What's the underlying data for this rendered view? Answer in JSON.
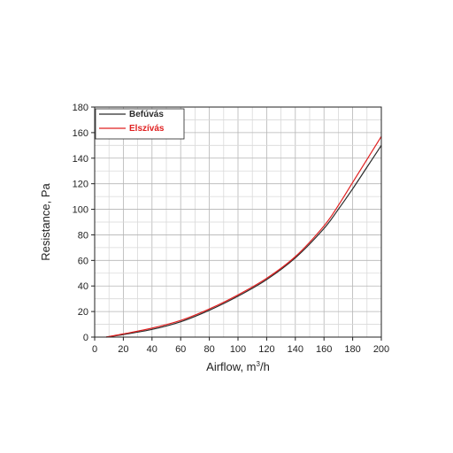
{
  "chart_data": {
    "type": "line",
    "xlabel": "Airflow, m",
    "xlabel_sup": "3",
    "xlabel_suffix": "/h",
    "ylabel": "Resistance, Pa",
    "xlim": [
      0,
      200
    ],
    "ylim": [
      0,
      180
    ],
    "xticks": [
      "0",
      "20",
      "40",
      "60",
      "80",
      "100",
      "120",
      "140",
      "160",
      "180",
      "200"
    ],
    "yticks": [
      "0",
      "20",
      "40",
      "60",
      "80",
      "100",
      "120",
      "140",
      "160",
      "180"
    ],
    "grid": true,
    "legend_position": "top-left",
    "series": [
      {
        "name": "Befúvás",
        "color": "#2b2b2b",
        "x": [
          8,
          20,
          40,
          60,
          80,
          100,
          120,
          140,
          160,
          170,
          180,
          190,
          200
        ],
        "y": [
          0,
          2,
          6,
          12,
          21,
          32,
          45,
          62,
          85,
          100,
          116,
          133,
          150
        ]
      },
      {
        "name": "Elszívás",
        "color": "#e02020",
        "x": [
          8,
          20,
          40,
          60,
          80,
          100,
          120,
          140,
          160,
          170,
          180,
          190,
          200
        ],
        "y": [
          0,
          2.5,
          7,
          13,
          22,
          33,
          46,
          63,
          87,
          103,
          121,
          139,
          157
        ]
      }
    ]
  }
}
